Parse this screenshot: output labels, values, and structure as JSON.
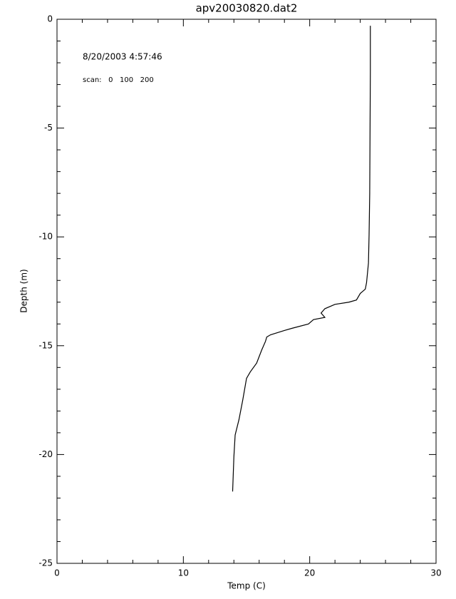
{
  "chart_data": {
    "type": "line",
    "title": "apv20030820.dat2",
    "xlabel": "Temp (C)",
    "ylabel": "Depth (m)",
    "annotations": [
      "8/20/2003 4:57:46",
      "scan:   0   100   200"
    ],
    "xlim": [
      0,
      30
    ],
    "xticks": [
      0,
      10,
      20,
      30
    ],
    "ylim": [
      -25,
      0
    ],
    "yticks": [
      0,
      -5,
      -10,
      -15,
      -20,
      -25
    ],
    "series": [
      {
        "color": "#000000",
        "x": [
          24.8,
          24.8,
          24.75,
          24.7,
          24.65,
          24.5,
          24.4,
          24.0,
          23.7,
          23.1,
          22.0,
          21.2,
          20.9,
          21.2,
          20.3,
          19.9,
          18.6,
          18.0,
          16.9,
          16.6,
          16.5,
          16.2,
          15.8,
          15.3,
          15.0,
          14.7,
          14.4,
          14.1,
          14.0,
          13.9
        ],
        "values": [
          -0.3,
          -2.4,
          -8,
          -9.9,
          -11.2,
          -12.1,
          -12.4,
          -12.6,
          -12.9,
          -13.0,
          -13.1,
          -13.3,
          -13.5,
          -13.7,
          -13.8,
          -14.0,
          -14.2,
          -14.3,
          -14.5,
          -14.6,
          -14.8,
          -15.2,
          -15.8,
          -16.2,
          -16.5,
          -17.5,
          -18.4,
          -19.1,
          -20.1,
          -21.7
        ]
      }
    ]
  }
}
